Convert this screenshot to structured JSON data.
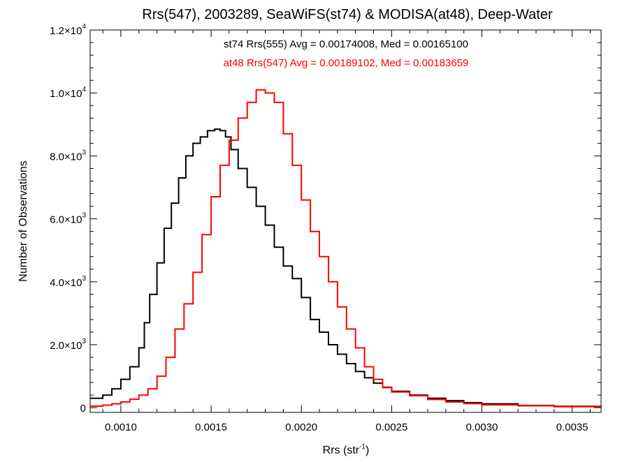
{
  "chart_data": {
    "type": "histogram",
    "title": "Rrs(547), 2003289, SeaWiFS(st74) & MODISA(at48), Deep-Water",
    "xlabel": "Rrs (str",
    "xlabel_superscript": "-1",
    "xlabel_suffix": ")",
    "ylabel": "Number of Observations",
    "xlim": [
      0.00083,
      0.00366
    ],
    "ylim": [
      -150,
      12000
    ],
    "x_ticks": [
      {
        "value": 0.001,
        "label": "0.0010"
      },
      {
        "value": 0.0015,
        "label": "0.0015"
      },
      {
        "value": 0.002,
        "label": "0.0020"
      },
      {
        "value": 0.0025,
        "label": "0.0025"
      },
      {
        "value": 0.003,
        "label": "0.0030"
      },
      {
        "value": 0.0035,
        "label": "0.0035"
      }
    ],
    "y_ticks": [
      {
        "value": 0,
        "mantissa": "0",
        "exponent": ""
      },
      {
        "value": 2000,
        "mantissa": "2.0×10",
        "exponent": "3"
      },
      {
        "value": 4000,
        "mantissa": "4.0×10",
        "exponent": "3"
      },
      {
        "value": 6000,
        "mantissa": "6.0×10",
        "exponent": "3"
      },
      {
        "value": 8000,
        "mantissa": "8.0×10",
        "exponent": "3"
      },
      {
        "value": 10000,
        "mantissa": "1.0×10",
        "exponent": "4"
      },
      {
        "value": 12000,
        "mantissa": "1.2×10",
        "exponent": "4"
      }
    ],
    "legend": [
      {
        "text": "st74 Rrs(555) Avg = 0.00174008, Med = 0.00165100",
        "color": "#000000"
      },
      {
        "text": "at48 Rrs(547) Avg = 0.00189102, Med = 0.00183659",
        "color": "#ff0000"
      }
    ],
    "series": [
      {
        "color": "#000000",
        "points": [
          [
            0.00083,
            300
          ],
          [
            0.0009,
            400
          ],
          [
            0.00095,
            600
          ],
          [
            0.001,
            900
          ],
          [
            0.00105,
            1300
          ],
          [
            0.0011,
            1900
          ],
          [
            0.00113,
            2700
          ],
          [
            0.00116,
            3600
          ],
          [
            0.0012,
            4600
          ],
          [
            0.00124,
            5700
          ],
          [
            0.00128,
            6500
          ],
          [
            0.00132,
            7300
          ],
          [
            0.00136,
            8000
          ],
          [
            0.0014,
            8400
          ],
          [
            0.00144,
            8600
          ],
          [
            0.00148,
            8800
          ],
          [
            0.00152,
            8850
          ],
          [
            0.00155,
            8800
          ],
          [
            0.00158,
            8600
          ],
          [
            0.00161,
            8200
          ],
          [
            0.00165,
            7600
          ],
          [
            0.0017,
            7000
          ],
          [
            0.00175,
            6400
          ],
          [
            0.0018,
            5800
          ],
          [
            0.00185,
            5100
          ],
          [
            0.0019,
            4500
          ],
          [
            0.00195,
            4100
          ],
          [
            0.002,
            3500
          ],
          [
            0.00205,
            2800
          ],
          [
            0.0021,
            2400
          ],
          [
            0.00215,
            2000
          ],
          [
            0.0022,
            1700
          ],
          [
            0.00225,
            1400
          ],
          [
            0.0023,
            1150
          ],
          [
            0.00235,
            950
          ],
          [
            0.0024,
            780
          ],
          [
            0.00245,
            640
          ],
          [
            0.0025,
            520
          ],
          [
            0.0026,
            400
          ],
          [
            0.0027,
            300
          ],
          [
            0.0028,
            220
          ],
          [
            0.0029,
            160
          ],
          [
            0.003,
            120
          ],
          [
            0.0032,
            70
          ],
          [
            0.0034,
            40
          ],
          [
            0.00366,
            20
          ]
        ]
      },
      {
        "color": "#ff0000",
        "points": [
          [
            0.00083,
            50
          ],
          [
            0.0009,
            80
          ],
          [
            0.00095,
            120
          ],
          [
            0.001,
            180
          ],
          [
            0.00105,
            270
          ],
          [
            0.0011,
            400
          ],
          [
            0.00115,
            600
          ],
          [
            0.0012,
            1000
          ],
          [
            0.00125,
            1600
          ],
          [
            0.0013,
            2500
          ],
          [
            0.00135,
            3300
          ],
          [
            0.0014,
            4300
          ],
          [
            0.00145,
            5500
          ],
          [
            0.0015,
            6700
          ],
          [
            0.00155,
            7700
          ],
          [
            0.0016,
            8500
          ],
          [
            0.00165,
            9200
          ],
          [
            0.0017,
            9700
          ],
          [
            0.00175,
            10100
          ],
          [
            0.0018,
            10000
          ],
          [
            0.00185,
            9700
          ],
          [
            0.0019,
            8700
          ],
          [
            0.00195,
            7700
          ],
          [
            0.002,
            6600
          ],
          [
            0.00205,
            5600
          ],
          [
            0.0021,
            4800
          ],
          [
            0.00215,
            4000
          ],
          [
            0.0022,
            3200
          ],
          [
            0.00225,
            2500
          ],
          [
            0.0023,
            1900
          ],
          [
            0.00235,
            1300
          ],
          [
            0.0024,
            900
          ],
          [
            0.00245,
            650
          ],
          [
            0.0025,
            500
          ],
          [
            0.0026,
            380
          ],
          [
            0.0027,
            260
          ],
          [
            0.0028,
            180
          ],
          [
            0.0029,
            130
          ],
          [
            0.003,
            90
          ],
          [
            0.0032,
            60
          ],
          [
            0.0034,
            30
          ],
          [
            0.00366,
            15
          ]
        ]
      }
    ]
  }
}
